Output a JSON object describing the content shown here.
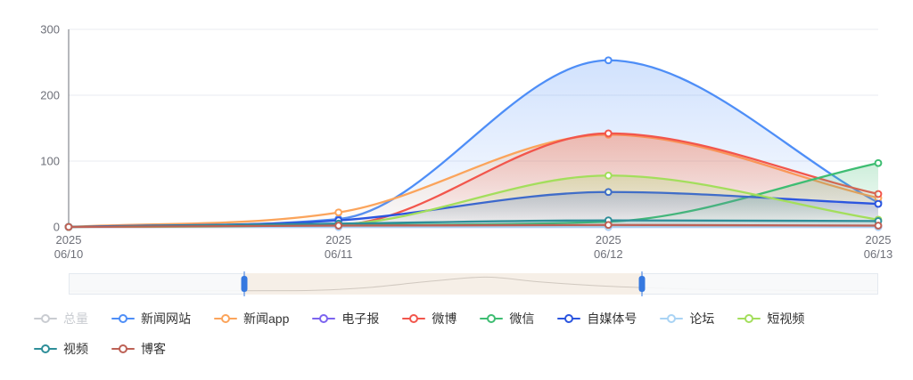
{
  "chart_data": {
    "type": "line",
    "smooth": true,
    "grid": true,
    "legend_position": "bottom",
    "title": "",
    "xlabel": "",
    "ylabel": "",
    "ylim": [
      0,
      300
    ],
    "yticks": [
      0,
      100,
      200,
      300
    ],
    "x": [
      "2025 06/10",
      "2025 06/11",
      "2025 06/12",
      "2025 06/13"
    ],
    "x_labels": [
      [
        "2025",
        "06/10"
      ],
      [
        "2025",
        "06/11"
      ],
      [
        "2025",
        "06/12"
      ],
      [
        "2025",
        "06/13"
      ]
    ],
    "series": [
      {
        "name": "总量",
        "color": "#c9ccd1",
        "selected": false,
        "values": null
      },
      {
        "name": "新闻网站",
        "color": "#4E8EF7",
        "selected": true,
        "values": [
          0,
          12,
          253,
          37
        ]
      },
      {
        "name": "新闻app",
        "color": "#FBA45B",
        "selected": true,
        "values": [
          0,
          22,
          140,
          44
        ]
      },
      {
        "name": "电子报",
        "color": "#7C64EF",
        "selected": true,
        "values": [
          0,
          0,
          0,
          0
        ]
      },
      {
        "name": "微博",
        "color": "#F2564C",
        "selected": true,
        "values": [
          0,
          3,
          142,
          50
        ]
      },
      {
        "name": "微信",
        "color": "#3EBD72",
        "selected": true,
        "values": [
          0,
          3,
          8,
          97
        ]
      },
      {
        "name": "自媒体号",
        "color": "#2B55DF",
        "selected": true,
        "values": [
          0,
          10,
          53,
          35
        ]
      },
      {
        "name": "论坛",
        "color": "#A9D3F4",
        "selected": true,
        "values": [
          0,
          0,
          0,
          0
        ]
      },
      {
        "name": "短视频",
        "color": "#A3DE5C",
        "selected": true,
        "values": [
          0,
          4,
          78,
          11
        ]
      },
      {
        "name": "视频",
        "color": "#2E8E99",
        "selected": true,
        "values": [
          0,
          5,
          10,
          9
        ]
      },
      {
        "name": "博客",
        "color": "#BD6156",
        "selected": true,
        "values": [
          0,
          2,
          3,
          2
        ]
      }
    ]
  },
  "datazoom": {
    "start_pct": 21.7,
    "end_pct": 70.8
  },
  "colors": {
    "axis_text": "#6E7079",
    "grid_line": "#e8ebf1",
    "axis_line": "#6E7079",
    "dz_filler": "#f6efe7",
    "dz_handle": "#3679e0",
    "dimmed_legend": "#c9ccd1"
  }
}
